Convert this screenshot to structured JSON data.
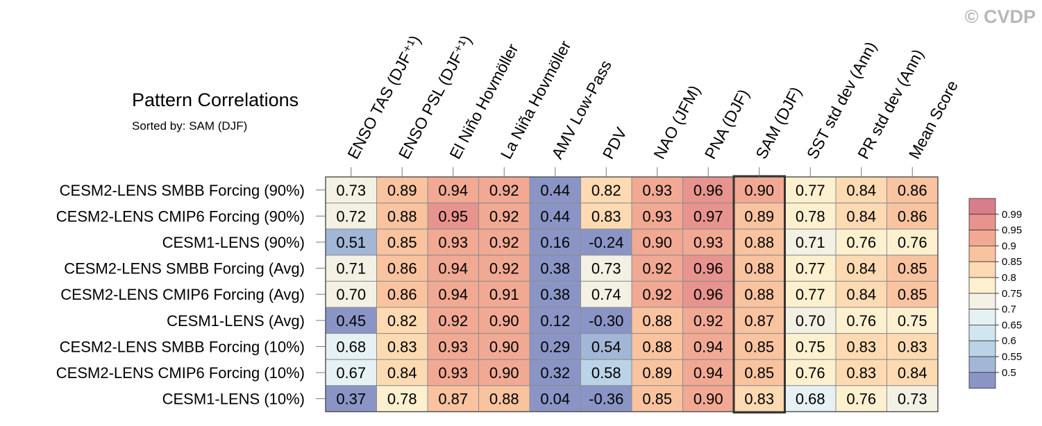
{
  "watermark": "© CVDP",
  "title": "Pattern Correlations",
  "subtitle": "Sorted by: SAM (DJF)",
  "colors": {
    "levels": [
      "#8a95c6",
      "#a2b6d6",
      "#bbd3e6",
      "#d2e6f1",
      "#e6f1f4",
      "#f3f1e4",
      "#fcf0cf",
      "#fddab2",
      "#f9c3a0",
      "#f1a993",
      "#e7938e",
      "#d87d8c"
    ],
    "grid": "#8c8c8c",
    "highlight": "#333333"
  },
  "chart_data": {
    "type": "heatmap",
    "columns": [
      "ENSO TAS (DJF⁺¹)",
      "ENSO PSL (DJF⁺¹)",
      "El Niño Hovmöller",
      "La Niña Hovmöller",
      "AMV Low-Pass",
      "PDV",
      "NAO (JFM)",
      "PNA (DJF)",
      "SAM (DJF)",
      "SST std dev (Ann)",
      "PR std dev (Ann)",
      "Mean Score"
    ],
    "rows": [
      "CESM2-LENS SMBB Forcing (90%)",
      "CESM2-LENS CMIP6 Forcing (90%)",
      "CESM1-LENS (90%)",
      "CESM2-LENS SMBB Forcing (Avg)",
      "CESM2-LENS CMIP6 Forcing (Avg)",
      "CESM1-LENS (Avg)",
      "CESM2-LENS SMBB Forcing (10%)",
      "CESM2-LENS CMIP6 Forcing (10%)",
      "CESM1-LENS (10%)"
    ],
    "values": [
      [
        0.73,
        0.89,
        0.94,
        0.92,
        0.44,
        0.82,
        0.93,
        0.96,
        0.9,
        0.77,
        0.84,
        0.86
      ],
      [
        0.72,
        0.88,
        0.95,
        0.92,
        0.44,
        0.83,
        0.93,
        0.97,
        0.89,
        0.78,
        0.84,
        0.86
      ],
      [
        0.51,
        0.85,
        0.93,
        0.92,
        0.16,
        -0.24,
        0.9,
        0.93,
        0.88,
        0.71,
        0.76,
        0.76
      ],
      [
        0.71,
        0.86,
        0.94,
        0.92,
        0.38,
        0.73,
        0.92,
        0.96,
        0.88,
        0.77,
        0.84,
        0.85
      ],
      [
        0.7,
        0.86,
        0.94,
        0.91,
        0.38,
        0.74,
        0.92,
        0.96,
        0.88,
        0.77,
        0.84,
        0.85
      ],
      [
        0.45,
        0.82,
        0.92,
        0.9,
        0.12,
        -0.3,
        0.88,
        0.92,
        0.87,
        0.7,
        0.76,
        0.75
      ],
      [
        0.68,
        0.83,
        0.93,
        0.9,
        0.29,
        0.54,
        0.88,
        0.94,
        0.85,
        0.75,
        0.83,
        0.83
      ],
      [
        0.67,
        0.84,
        0.93,
        0.9,
        0.32,
        0.58,
        0.89,
        0.94,
        0.85,
        0.76,
        0.83,
        0.84
      ],
      [
        0.37,
        0.78,
        0.87,
        0.88,
        0.04,
        -0.36,
        0.85,
        0.9,
        0.83,
        0.68,
        0.76,
        0.73
      ]
    ],
    "highlight_column": "SAM (DJF)",
    "colorbar": {
      "labels": [
        "0.99",
        "0.95",
        "0.9",
        "0.85",
        "0.8",
        "0.75",
        "0.7",
        "0.65",
        "0.6",
        "0.55",
        "0.5"
      ],
      "thresholds": [
        0.5,
        0.55,
        0.6,
        0.65,
        0.7,
        0.75,
        0.8,
        0.85,
        0.9,
        0.95,
        0.99
      ]
    }
  }
}
